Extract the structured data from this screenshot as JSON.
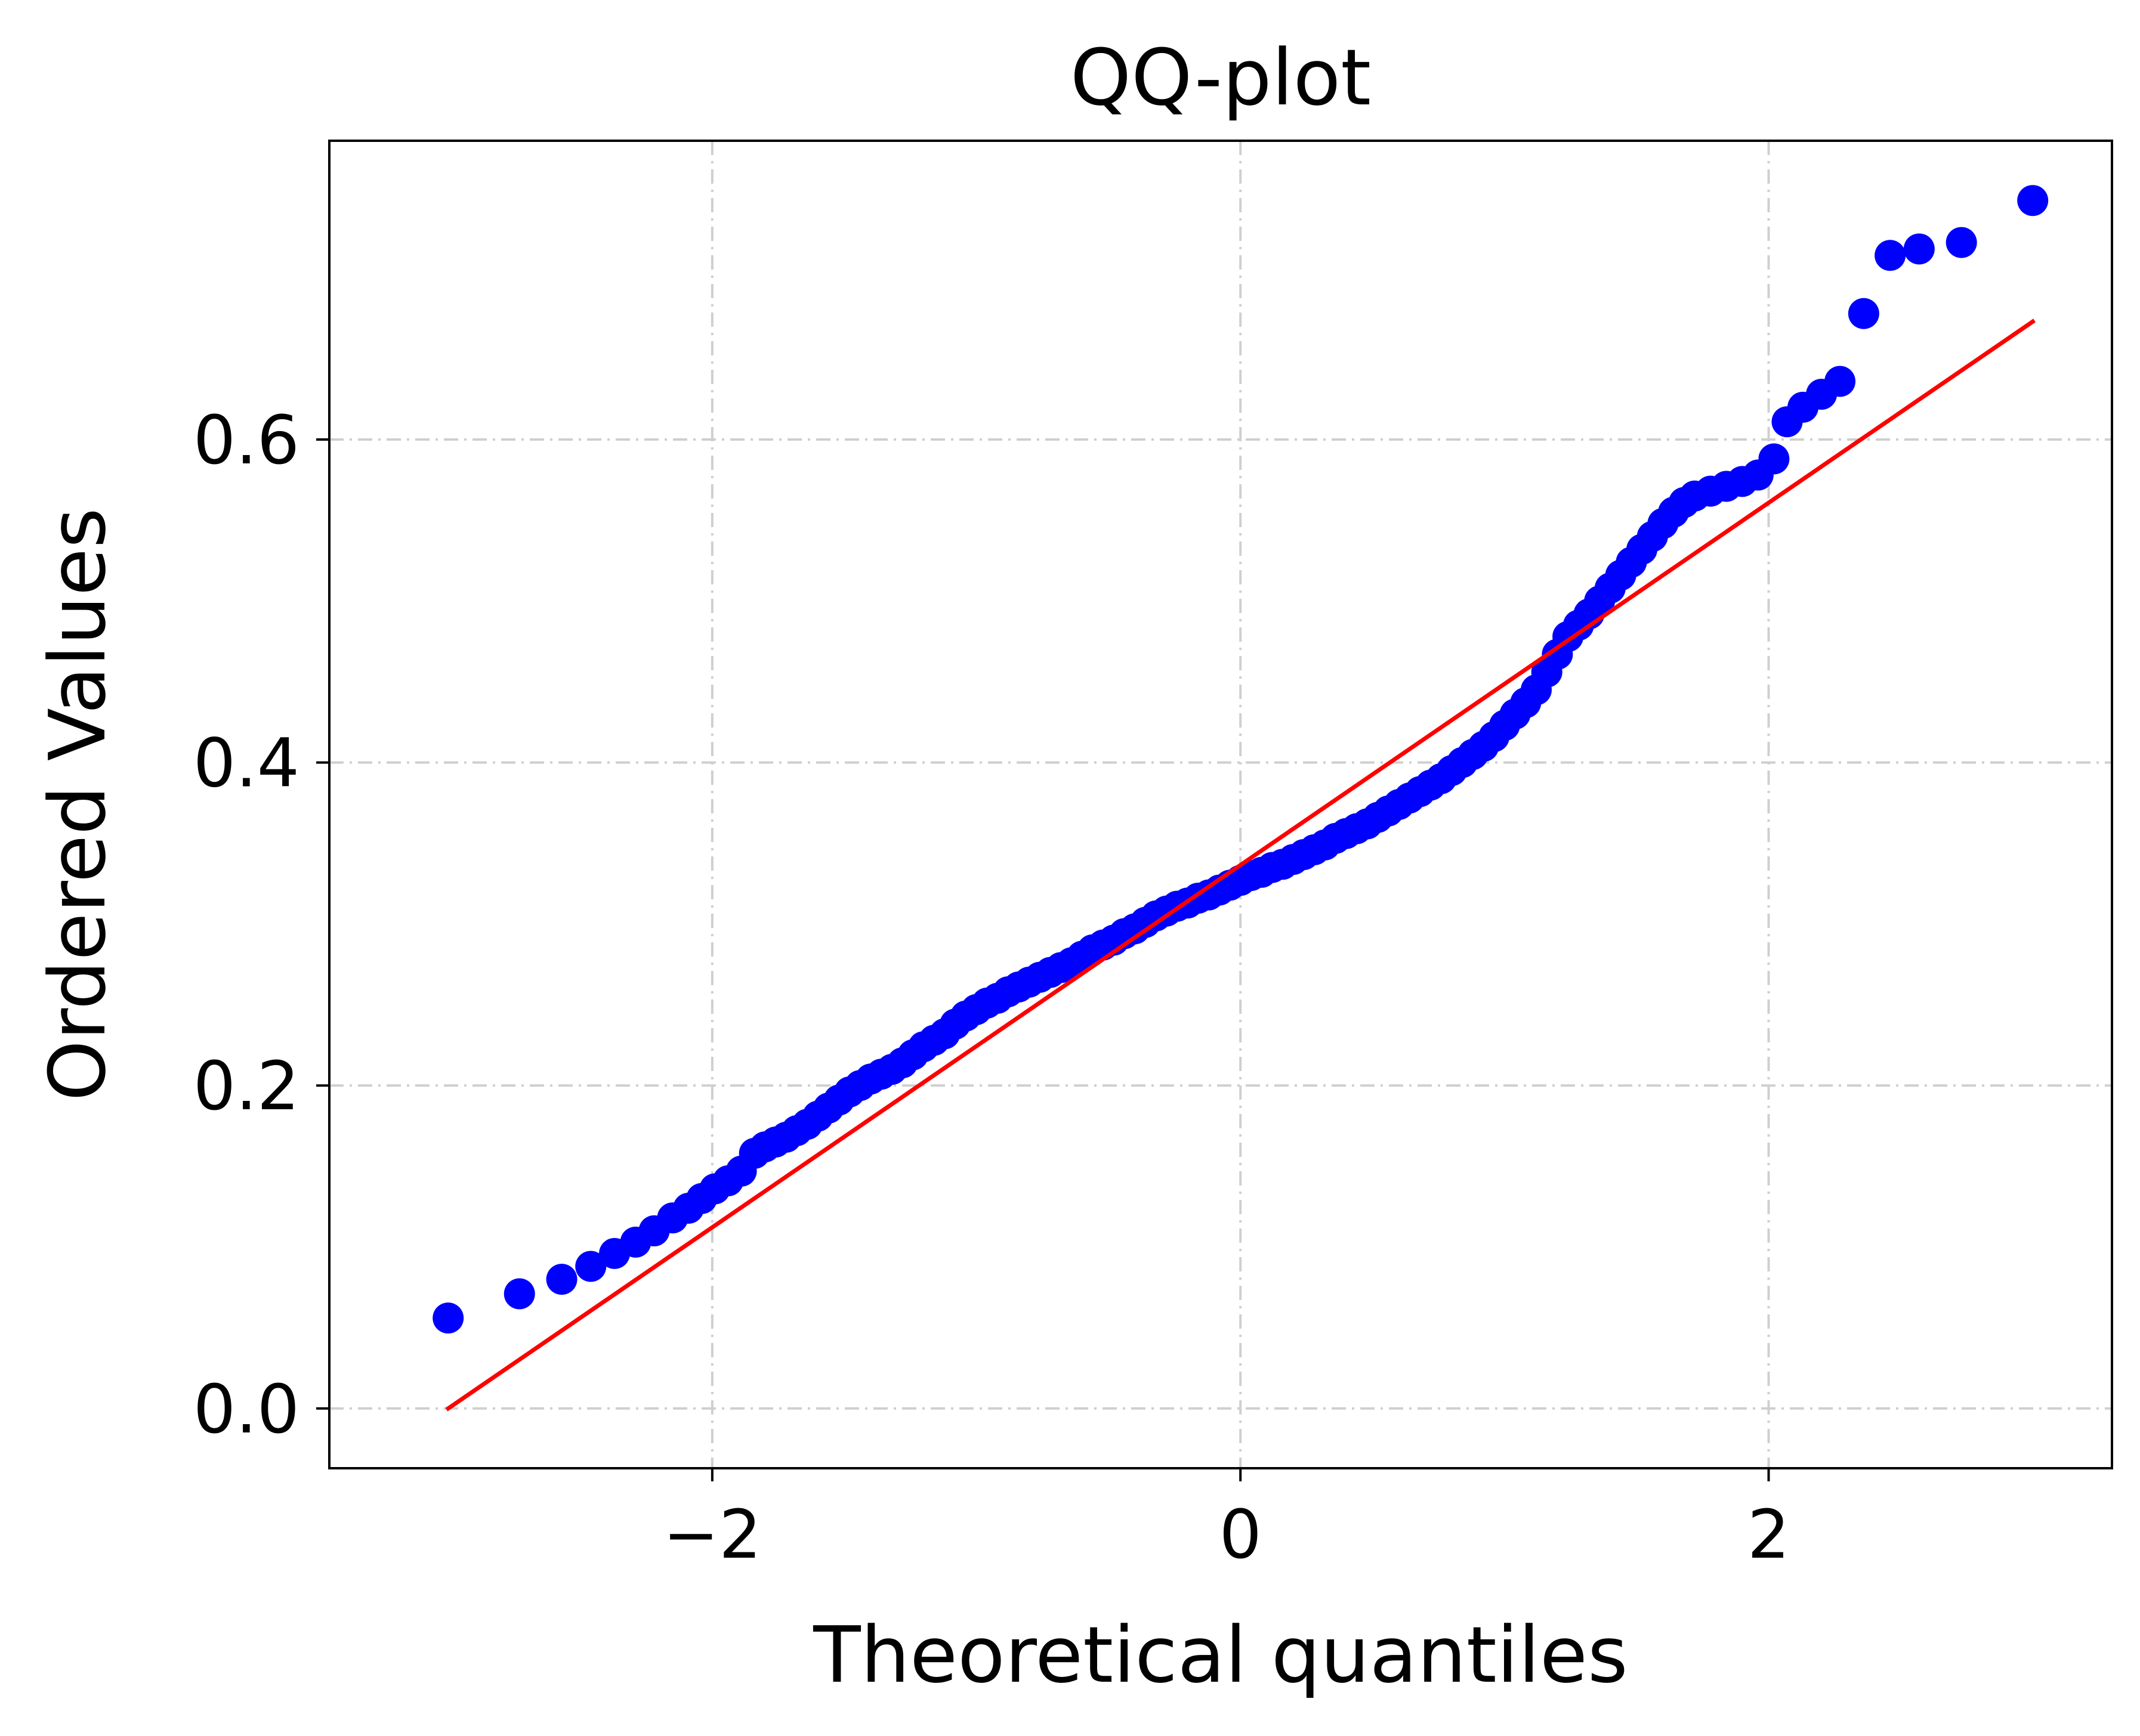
{
  "chart_data": {
    "type": "scatter",
    "title": "QQ-plot",
    "xlabel": "Theoretical quantiles",
    "ylabel": "Ordered Values",
    "xlim": [
      -3.45,
      3.3
    ],
    "ylim": [
      -0.037,
      0.785
    ],
    "xticks": [
      -2,
      0,
      2
    ],
    "xtick_labels": [
      "−2",
      "0",
      "2"
    ],
    "yticks": [
      0.0,
      0.2,
      0.4,
      0.6
    ],
    "ytick_labels": [
      "0.0",
      "0.2",
      "0.4",
      "0.6"
    ],
    "grid": true,
    "legend": "none",
    "series": [
      {
        "kind": "points",
        "color": "#0000ff",
        "x": [
          -3.0,
          -2.73,
          -2.57,
          -2.46,
          -2.37,
          -2.29,
          -2.22,
          -2.15,
          -2.09,
          -2.04,
          -1.99,
          -1.94,
          -1.89,
          -1.84,
          -1.8,
          -1.76,
          -1.72,
          -1.68,
          -1.64,
          -1.6,
          -1.56,
          -1.52,
          -1.48,
          -1.44,
          -1.4,
          -1.36,
          -1.32,
          -1.28,
          -1.24,
          -1.2,
          -1.16,
          -1.12,
          -1.08,
          -1.04,
          -1.0,
          -0.96,
          -0.92,
          -0.88,
          -0.84,
          -0.8,
          -0.76,
          -0.72,
          -0.68,
          -0.64,
          -0.6,
          -0.56,
          -0.52,
          -0.48,
          -0.44,
          -0.4,
          -0.36,
          -0.32,
          -0.28,
          -0.24,
          -0.2,
          -0.16,
          -0.12,
          -0.08,
          -0.04,
          0.0,
          0.04,
          0.08,
          0.12,
          0.16,
          0.2,
          0.24,
          0.28,
          0.32,
          0.36,
          0.4,
          0.44,
          0.48,
          0.52,
          0.56,
          0.6,
          0.64,
          0.68,
          0.72,
          0.76,
          0.8,
          0.84,
          0.88,
          0.92,
          0.96,
          1.0,
          1.04,
          1.08,
          1.12,
          1.16,
          1.2,
          1.24,
          1.28,
          1.32,
          1.36,
          1.4,
          1.44,
          1.48,
          1.52,
          1.56,
          1.6,
          1.64,
          1.68,
          1.72,
          1.78,
          1.84,
          1.9,
          1.96,
          2.02,
          2.07,
          2.13,
          2.2,
          2.27,
          2.36,
          2.46,
          2.57,
          2.73,
          3.0
        ],
        "y": [
          0.056,
          0.071,
          0.08,
          0.088,
          0.096,
          0.103,
          0.11,
          0.118,
          0.124,
          0.13,
          0.136,
          0.141,
          0.147,
          0.158,
          0.162,
          0.165,
          0.168,
          0.172,
          0.176,
          0.181,
          0.186,
          0.191,
          0.196,
          0.2,
          0.204,
          0.207,
          0.21,
          0.214,
          0.219,
          0.224,
          0.228,
          0.232,
          0.238,
          0.243,
          0.247,
          0.251,
          0.254,
          0.258,
          0.261,
          0.264,
          0.267,
          0.27,
          0.273,
          0.276,
          0.28,
          0.284,
          0.287,
          0.29,
          0.294,
          0.297,
          0.301,
          0.305,
          0.308,
          0.311,
          0.313,
          0.316,
          0.318,
          0.321,
          0.324,
          0.327,
          0.33,
          0.332,
          0.335,
          0.337,
          0.34,
          0.343,
          0.346,
          0.349,
          0.353,
          0.356,
          0.359,
          0.362,
          0.366,
          0.37,
          0.374,
          0.378,
          0.382,
          0.386,
          0.39,
          0.395,
          0.4,
          0.405,
          0.41,
          0.416,
          0.423,
          0.43,
          0.437,
          0.445,
          0.456,
          0.467,
          0.478,
          0.485,
          0.492,
          0.5,
          0.508,
          0.516,
          0.524,
          0.532,
          0.54,
          0.548,
          0.555,
          0.561,
          0.565,
          0.568,
          0.571,
          0.574,
          0.578,
          0.588,
          0.611,
          0.62,
          0.628,
          0.636,
          0.678,
          0.714,
          0.718,
          0.722,
          0.748
        ]
      },
      {
        "kind": "fit-line",
        "color": "#ff0000",
        "x": [
          -3.0,
          3.0
        ],
        "y": [
          0.0,
          0.673
        ]
      }
    ]
  }
}
